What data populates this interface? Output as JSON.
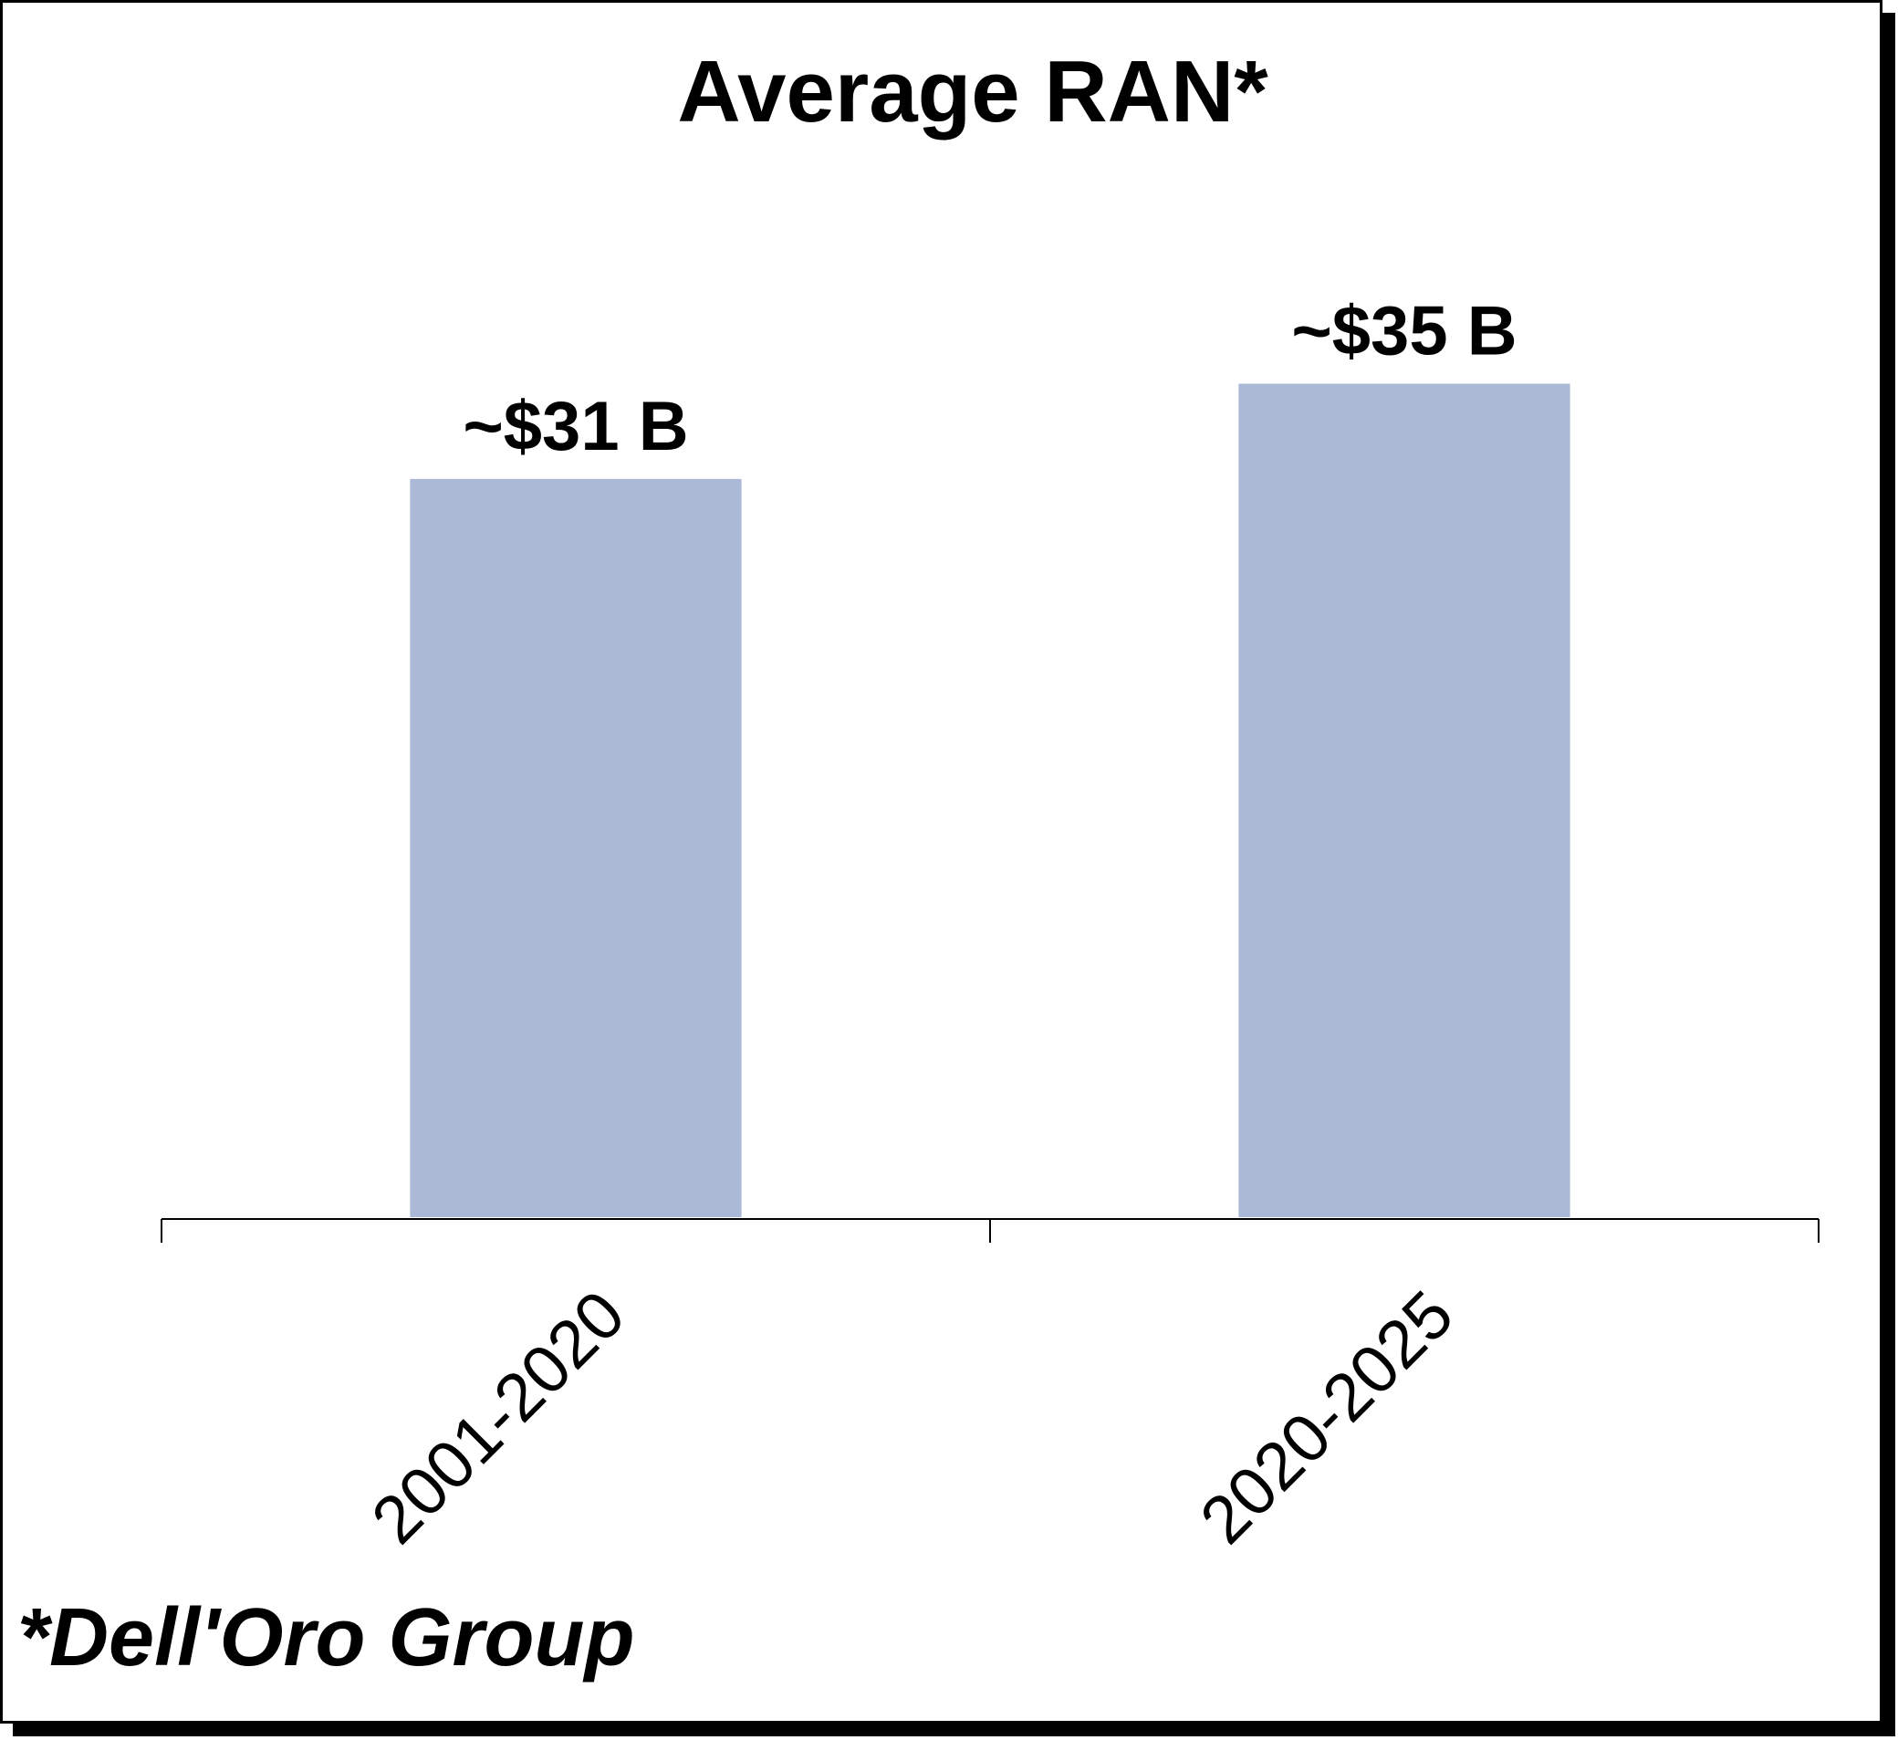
{
  "chart_data": {
    "type": "bar",
    "title": "Average RAN*",
    "categories": [
      "2001-2020",
      "2020-2025"
    ],
    "values": [
      31,
      35
    ],
    "unit": "$ B",
    "data_labels": [
      "~$31 B",
      "~$35 B"
    ],
    "xlabel": "",
    "ylabel": "",
    "ylim": [
      0,
      40
    ],
    "grid": false,
    "legend": "none",
    "bar_color": "#abb9d6"
  },
  "footnote": "*Dell'Oro Group"
}
